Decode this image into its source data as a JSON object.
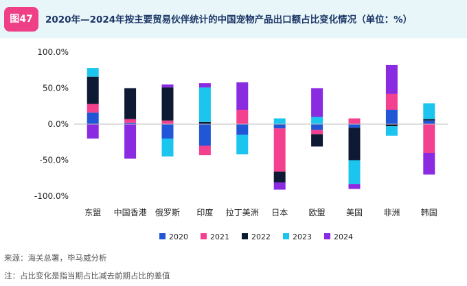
{
  "header": {
    "badge": "图47",
    "title": "2020年—2024年按主要贸易伙伴统计的中国宠物产品出口额占比变化情况（单位：%）"
  },
  "colors": {
    "2020": "#2156d6",
    "2021": "#f4418f",
    "2022": "#0e1a33",
    "2023": "#1cc5ee",
    "2024": "#8a2be2"
  },
  "chart_data": {
    "type": "bar",
    "stacked": true,
    "title": "2020年—2024年按主要贸易伙伴统计的中国宠物产品出口额占比变化情况（单位：%）",
    "categories": [
      "东盟",
      "中国香港",
      "俄罗斯",
      "印度",
      "拉丁美洲",
      "日本",
      "欧盟",
      "美国",
      "非洲",
      "韩国"
    ],
    "ylim": [
      -100,
      100
    ],
    "yticks": [
      100,
      50,
      0,
      -50,
      -100
    ],
    "ytick_labels": [
      "100.0%",
      "50.0%",
      "0.0%",
      "-50.0%",
      "-100.0%"
    ],
    "legend_position": "bottom",
    "grid": false,
    "series": [
      {
        "name": "2020",
        "values": [
          16,
          2,
          -20,
          -30,
          -15,
          -6,
          -8,
          -5,
          20,
          5
        ]
      },
      {
        "name": "2021",
        "values": [
          12,
          5,
          5,
          -13,
          20,
          -60,
          -6,
          8,
          22,
          -40
        ]
      },
      {
        "name": "2022",
        "values": [
          38,
          43,
          46,
          3,
          0,
          -15,
          -17,
          -45,
          -3,
          2
        ]
      },
      {
        "name": "2023",
        "values": [
          12,
          0,
          -25,
          48,
          -27,
          8,
          10,
          -33,
          -13,
          22
        ]
      },
      {
        "name": "2024",
        "values": [
          -20,
          -48,
          4,
          6,
          38,
          -10,
          40,
          -7,
          40,
          -30
        ]
      }
    ]
  },
  "footer": {
    "source": "来源：海关总署，毕马威分析",
    "note": "注：占比变化是指当期占比减去前期占比的差值"
  }
}
